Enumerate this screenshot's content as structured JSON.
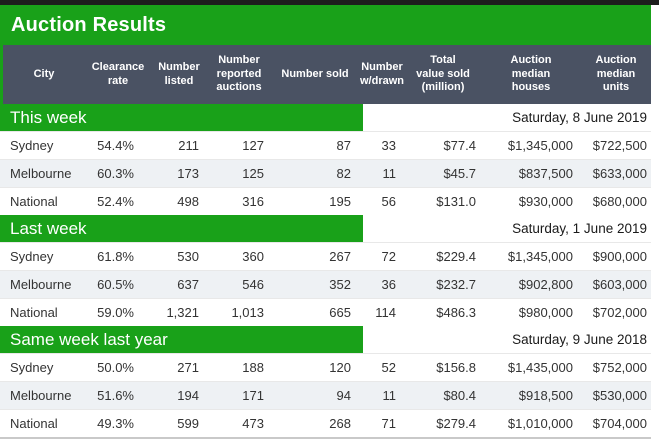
{
  "title": "Auction Results",
  "colors": {
    "green": "#19a119",
    "header_bg": "#4a5263",
    "stripe": "#eef1f4",
    "top_strip": "#1d1d1d",
    "text": "#333333"
  },
  "columns": [
    {
      "key": "city",
      "label": "City"
    },
    {
      "key": "clearance-rate",
      "label": "Clearance\nrate"
    },
    {
      "key": "number-listed",
      "label": "Number\nlisted"
    },
    {
      "key": "number-reported-auctions",
      "label": "Number\nreported\nauctions"
    },
    {
      "key": "number-sold",
      "label": "Number sold"
    },
    {
      "key": "number-wdrawn",
      "label": "Number\nw/drawn"
    },
    {
      "key": "total-value-sold",
      "label": "Total\nvalue sold\n(million)"
    },
    {
      "key": "auction-median-houses",
      "label": "Auction\nmedian\nhouses"
    },
    {
      "key": "auction-median-units",
      "label": "Auction\nmedian\nunits"
    }
  ],
  "sections": [
    {
      "label": "This week",
      "date": "Saturday, 8 June 2019",
      "rows": [
        [
          "Sydney",
          "54.4%",
          "211",
          "127",
          "87",
          "33",
          "$77.4",
          "$1,345,000",
          "$722,500"
        ],
        [
          "Melbourne",
          "60.3%",
          "173",
          "125",
          "82",
          "11",
          "$45.7",
          "$837,500",
          "$633,000"
        ],
        [
          "National",
          "52.4%",
          "498",
          "316",
          "195",
          "56",
          "$131.0",
          "$930,000",
          "$680,000"
        ]
      ]
    },
    {
      "label": "Last week",
      "date": "Saturday, 1 June 2019",
      "rows": [
        [
          "Sydney",
          "61.8%",
          "530",
          "360",
          "267",
          "72",
          "$229.4",
          "$1,345,000",
          "$900,000"
        ],
        [
          "Melbourne",
          "60.5%",
          "637",
          "546",
          "352",
          "36",
          "$232.7",
          "$902,800",
          "$603,000"
        ],
        [
          "National",
          "59.0%",
          "1,321",
          "1,013",
          "665",
          "114",
          "$486.3",
          "$980,000",
          "$702,000"
        ]
      ]
    },
    {
      "label": "Same week last year",
      "date": "Saturday, 9 June 2018",
      "rows": [
        [
          "Sydney",
          "50.0%",
          "271",
          "188",
          "120",
          "52",
          "$156.8",
          "$1,435,000",
          "$752,000"
        ],
        [
          "Melbourne",
          "51.6%",
          "194",
          "171",
          "94",
          "11",
          "$80.4",
          "$918,500",
          "$530,000"
        ],
        [
          "National",
          "49.3%",
          "599",
          "473",
          "268",
          "71",
          "$279.4",
          "$1,010,000",
          "$704,000"
        ]
      ]
    }
  ]
}
